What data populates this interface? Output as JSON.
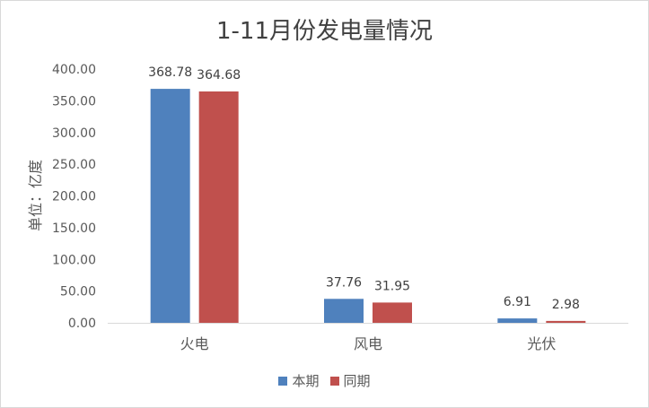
{
  "chart_data": {
    "type": "bar",
    "title": "1-11月份发电量情况",
    "ylabel": "单位：亿度",
    "xlabel": "",
    "categories": [
      "火电",
      "风电",
      "光伏"
    ],
    "series": [
      {
        "name": "本期",
        "color": "#4f81bd",
        "values": [
          368.78,
          37.76,
          6.91
        ],
        "labels": [
          "368.78",
          "37.76",
          "6.91"
        ]
      },
      {
        "name": "同期",
        "color": "#c0504d",
        "values": [
          364.68,
          31.95,
          2.98
        ],
        "labels": [
          "364.68",
          "31.95",
          "2.98"
        ]
      }
    ],
    "ylim": [
      0,
      400
    ],
    "yticks": [
      "0.00",
      "50.00",
      "100.00",
      "150.00",
      "200.00",
      "250.00",
      "300.00",
      "350.00",
      "400.00"
    ],
    "grid": false,
    "legend_position": "bottom"
  }
}
